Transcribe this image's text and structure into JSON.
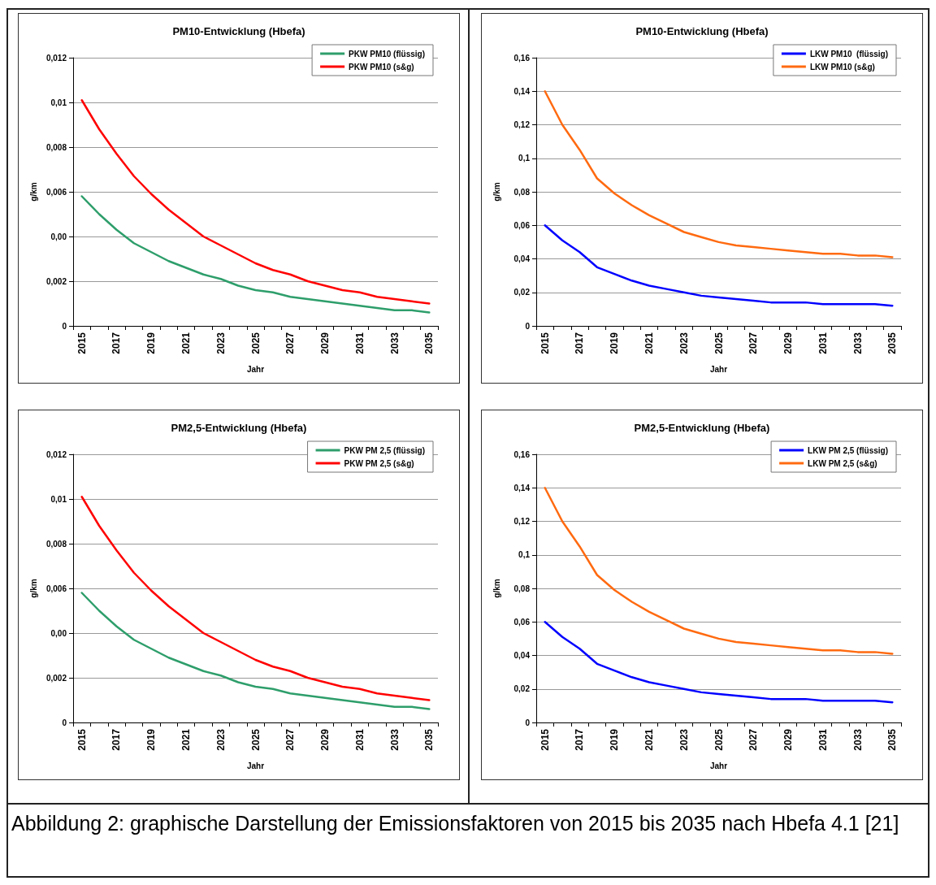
{
  "chart_data": [
    {
      "type": "line",
      "title": "PM10-Entwicklung (Hbefa)",
      "xlabel": "Jahr",
      "ylabel": "g/km",
      "categories": [
        "2015",
        null,
        "2017",
        null,
        "2019",
        null,
        "2021",
        null,
        "2023",
        null,
        "2025",
        null,
        "2027",
        null,
        "2029",
        null,
        "2031",
        null,
        "2033",
        null,
        "2035"
      ],
      "series": [
        {
          "name": "PKW PM10 (flüssig)",
          "color": "#2e9e6b",
          "values": [
            0.0058,
            0.005,
            0.0043,
            0.0037,
            0.0033,
            0.0029,
            0.0026,
            0.0023,
            0.0021,
            0.0018,
            0.0016,
            0.0015,
            0.0013,
            0.0012,
            0.0011,
            0.001,
            0.0009,
            0.0008,
            0.0007,
            0.0007,
            0.0006
          ]
        },
        {
          "name": "PKW PM10 (s&g)",
          "color": "#ff0000",
          "values": [
            0.0101,
            0.0088,
            0.0077,
            0.0067,
            0.0059,
            0.0052,
            0.0046,
            0.004,
            0.0036,
            0.0032,
            0.0028,
            0.0025,
            0.0023,
            0.002,
            0.0018,
            0.0016,
            0.0015,
            0.0013,
            0.0012,
            0.0011,
            0.001
          ]
        }
      ],
      "ylim": [
        0,
        0.012
      ],
      "yticks": [
        {
          "value": 0,
          "label": "0"
        },
        {
          "value": 0.002,
          "label": "0,002"
        },
        {
          "value": 0.004,
          "label": "0,00"
        },
        {
          "value": 0.006,
          "label": "0,006"
        },
        {
          "value": 0.008,
          "label": "0,008"
        },
        {
          "value": 0.01,
          "label": "0,01"
        },
        {
          "value": 0.012,
          "label": "0,012"
        }
      ],
      "grid": "y",
      "legend": "top right",
      "marker": "none",
      "line_style": "solid"
    },
    {
      "type": "line",
      "title": "PM10-Entwicklung (Hbefa)",
      "xlabel": "Jahr",
      "ylabel": "g/km",
      "categories": [
        "2015",
        null,
        "2017",
        null,
        "2019",
        null,
        "2021",
        null,
        "2023",
        null,
        "2025",
        null,
        "2027",
        null,
        "2029",
        null,
        "2031",
        null,
        "2033",
        null,
        "2035"
      ],
      "series": [
        {
          "name": "LKW PM10  (flüssig)",
          "color": "#0000ff",
          "values": [
            0.06,
            0.051,
            0.044,
            0.035,
            0.031,
            0.027,
            0.024,
            0.022,
            0.02,
            0.018,
            0.017,
            0.016,
            0.015,
            0.014,
            0.014,
            0.014,
            0.013,
            0.013,
            0.013,
            0.013,
            0.012
          ]
        },
        {
          "name": "LKW PM10 (s&g)",
          "color": "#ff6a10",
          "values": [
            0.14,
            0.12,
            0.105,
            0.088,
            0.079,
            0.072,
            0.066,
            0.061,
            0.056,
            0.053,
            0.05,
            0.048,
            0.047,
            0.046,
            0.045,
            0.044,
            0.043,
            0.043,
            0.042,
            0.042,
            0.041
          ]
        }
      ],
      "ylim": [
        0,
        0.16
      ],
      "yticks": [
        {
          "value": 0,
          "label": "0"
        },
        {
          "value": 0.02,
          "label": "0,02"
        },
        {
          "value": 0.04,
          "label": "0,04"
        },
        {
          "value": 0.06,
          "label": "0,06"
        },
        {
          "value": 0.08,
          "label": "0,08"
        },
        {
          "value": 0.1,
          "label": "0,1"
        },
        {
          "value": 0.12,
          "label": "0,12"
        },
        {
          "value": 0.14,
          "label": "0,14"
        },
        {
          "value": 0.16,
          "label": "0,16"
        }
      ],
      "grid": "y",
      "legend": "top right",
      "marker": "none",
      "line_style": "solid"
    },
    {
      "type": "line",
      "title": "PM2,5-Entwicklung (Hbefa)",
      "xlabel": "Jahr",
      "ylabel": "g/km",
      "categories": [
        "2015",
        null,
        "2017",
        null,
        "2019",
        null,
        "2021",
        null,
        "2023",
        null,
        "2025",
        null,
        "2027",
        null,
        "2029",
        null,
        "2031",
        null,
        "2033",
        null,
        "2035"
      ],
      "series": [
        {
          "name": "PKW PM 2,5 (flüssig)",
          "color": "#2e9e6b",
          "values": [
            0.0058,
            0.005,
            0.0043,
            0.0037,
            0.0033,
            0.0029,
            0.0026,
            0.0023,
            0.0021,
            0.0018,
            0.0016,
            0.0015,
            0.0013,
            0.0012,
            0.0011,
            0.001,
            0.0009,
            0.0008,
            0.0007,
            0.0007,
            0.0006
          ]
        },
        {
          "name": "PKW PM 2,5 (s&g)",
          "color": "#ff0000",
          "values": [
            0.0101,
            0.0088,
            0.0077,
            0.0067,
            0.0059,
            0.0052,
            0.0046,
            0.004,
            0.0036,
            0.0032,
            0.0028,
            0.0025,
            0.0023,
            0.002,
            0.0018,
            0.0016,
            0.0015,
            0.0013,
            0.0012,
            0.0011,
            0.001
          ]
        }
      ],
      "ylim": [
        0,
        0.012
      ],
      "yticks": [
        {
          "value": 0,
          "label": "0"
        },
        {
          "value": 0.002,
          "label": "0,002"
        },
        {
          "value": 0.004,
          "label": "0,00"
        },
        {
          "value": 0.006,
          "label": "0,006"
        },
        {
          "value": 0.008,
          "label": "0,008"
        },
        {
          "value": 0.01,
          "label": "0,01"
        },
        {
          "value": 0.012,
          "label": "0,012"
        }
      ],
      "grid": "y",
      "legend": "top right",
      "marker": "none",
      "line_style": "solid"
    },
    {
      "type": "line",
      "title": "PM2,5-Entwicklung (Hbefa)",
      "xlabel": "Jahr",
      "ylabel": "g/km",
      "categories": [
        "2015",
        null,
        "2017",
        null,
        "2019",
        null,
        "2021",
        null,
        "2023",
        null,
        "2025",
        null,
        "2027",
        null,
        "2029",
        null,
        "2031",
        null,
        "2033",
        null,
        "2035"
      ],
      "series": [
        {
          "name": "LKW PM 2,5 (flüssig)",
          "color": "#0000ff",
          "values": [
            0.06,
            0.051,
            0.044,
            0.035,
            0.031,
            0.027,
            0.024,
            0.022,
            0.02,
            0.018,
            0.017,
            0.016,
            0.015,
            0.014,
            0.014,
            0.014,
            0.013,
            0.013,
            0.013,
            0.013,
            0.012
          ]
        },
        {
          "name": "LKW PM 2,5 (s&g)",
          "color": "#ff6a10",
          "values": [
            0.14,
            0.12,
            0.105,
            0.088,
            0.079,
            0.072,
            0.066,
            0.061,
            0.056,
            0.053,
            0.05,
            0.048,
            0.047,
            0.046,
            0.045,
            0.044,
            0.043,
            0.043,
            0.042,
            0.042,
            0.041
          ]
        }
      ],
      "ylim": [
        0,
        0.16
      ],
      "yticks": [
        {
          "value": 0,
          "label": "0"
        },
        {
          "value": 0.02,
          "label": "0,02"
        },
        {
          "value": 0.04,
          "label": "0,04"
        },
        {
          "value": 0.06,
          "label": "0,06"
        },
        {
          "value": 0.08,
          "label": "0,08"
        },
        {
          "value": 0.1,
          "label": "0,1"
        },
        {
          "value": 0.12,
          "label": "0,12"
        },
        {
          "value": 0.14,
          "label": "0,14"
        },
        {
          "value": 0.16,
          "label": "0,16"
        }
      ],
      "grid": "y",
      "legend": "top right",
      "marker": "none",
      "line_style": "solid",
      "annotations": [
        "Abbildung 2:   graphische Darstellung der Emissionsfaktoren von 2015 bis 2035 nach Hbefa 4.1 [21]"
      ]
    }
  ]
}
